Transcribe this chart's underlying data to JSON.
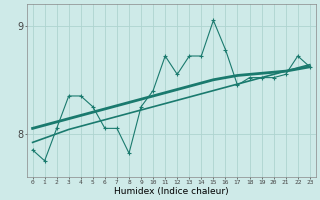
{
  "xlabel": "Humidex (Indice chaleur)",
  "ylabel": "",
  "x_values": [
    0,
    1,
    2,
    3,
    4,
    5,
    6,
    7,
    8,
    9,
    10,
    11,
    12,
    13,
    14,
    15,
    16,
    17,
    18,
    19,
    20,
    21,
    22,
    23
  ],
  "jagged_y": [
    7.85,
    7.75,
    8.05,
    8.35,
    8.35,
    8.25,
    8.05,
    8.05,
    7.82,
    8.25,
    8.4,
    8.72,
    8.55,
    8.72,
    8.72,
    9.05,
    8.78,
    8.45,
    8.52,
    8.52,
    8.52,
    8.55,
    8.72,
    8.62
  ],
  "smooth_y": [
    8.05,
    8.08,
    8.11,
    8.14,
    8.17,
    8.2,
    8.23,
    8.26,
    8.29,
    8.32,
    8.35,
    8.38,
    8.41,
    8.44,
    8.47,
    8.5,
    8.52,
    8.54,
    8.55,
    8.56,
    8.57,
    8.58,
    8.6,
    8.62
  ],
  "trend_y": [
    7.92,
    7.96,
    8.0,
    8.04,
    8.07,
    8.1,
    8.13,
    8.16,
    8.19,
    8.22,
    8.25,
    8.28,
    8.31,
    8.34,
    8.37,
    8.4,
    8.43,
    8.46,
    8.49,
    8.52,
    8.55,
    8.58,
    8.61,
    8.64
  ],
  "line_color": "#1a7a6e",
  "bg_color": "#ceeae8",
  "grid_color": "#aed4d0",
  "ylim": [
    7.6,
    9.2
  ],
  "yticks": [
    8,
    9
  ],
  "xlim": [
    -0.5,
    23.5
  ]
}
